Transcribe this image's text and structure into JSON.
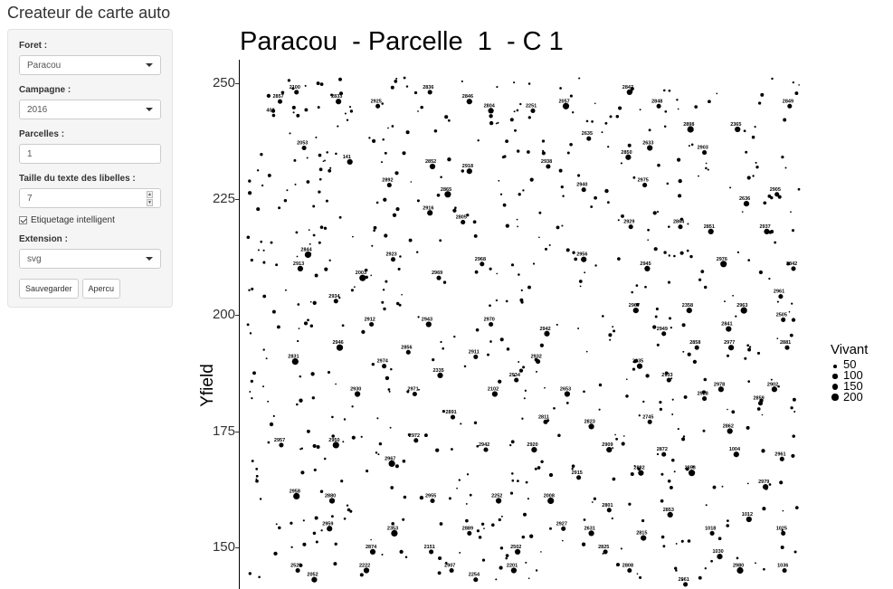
{
  "app": {
    "title": "Createur de carte auto"
  },
  "sidebar": {
    "foret": {
      "label": "Foret :",
      "value": "Paracou"
    },
    "campagne": {
      "label": "Campagne :",
      "value": "2016"
    },
    "parcelles": {
      "label": "Parcelles :",
      "value": "1"
    },
    "taille": {
      "label": "Taille du texte des libelles :",
      "value": "7"
    },
    "etiquetage": {
      "label": "Etiquetage intelligent",
      "checked": true
    },
    "extension": {
      "label": "Extension :",
      "value": "svg"
    },
    "buttons": {
      "save": "Sauvegarder",
      "preview": "Apercu"
    }
  },
  "chart_data": {
    "type": "scatter",
    "title": "Paracou  - Parcelle  1  - C 1",
    "ylabel": "Yfield",
    "yticks": [
      "250",
      "225",
      "200",
      "175",
      "150"
    ],
    "ylim": [
      141,
      255
    ],
    "legend": {
      "title": "Vivant",
      "entries": [
        "50",
        "100",
        "150",
        "200"
      ],
      "placement": "right"
    },
    "points": [
      {
        "x": 6,
        "y": 243,
        "label": "403",
        "size": 50
      },
      {
        "x": 11,
        "y": 246,
        "label": "2857",
        "size": 100
      },
      {
        "x": 24,
        "y": 248,
        "label": "2100",
        "size": 100
      },
      {
        "x": 57,
        "y": 246,
        "label": "2833",
        "size": 150
      },
      {
        "x": 88,
        "y": 245,
        "label": "2925",
        "size": 100
      },
      {
        "x": 129,
        "y": 248,
        "label": "2836",
        "size": 100
      },
      {
        "x": 160,
        "y": 246,
        "label": "2846",
        "size": 150
      },
      {
        "x": 177,
        "y": 244,
        "label": "2804",
        "size": 150
      },
      {
        "x": 210,
        "y": 244,
        "label": "2251",
        "size": 100
      },
      {
        "x": 236,
        "y": 245,
        "label": "2057",
        "size": 200
      },
      {
        "x": 286,
        "y": 248,
        "label": "2847",
        "size": 150
      },
      {
        "x": 309,
        "y": 245,
        "label": "2848",
        "size": 100
      },
      {
        "x": 334,
        "y": 240,
        "label": "2898",
        "size": 200
      },
      {
        "x": 371,
        "y": 240,
        "label": "2365",
        "size": 150
      },
      {
        "x": 412,
        "y": 245,
        "label": "2849",
        "size": 100
      },
      {
        "x": 30,
        "y": 236,
        "label": "2053",
        "size": 100
      },
      {
        "x": 66,
        "y": 233,
        "label": "141",
        "size": 150
      },
      {
        "x": 131,
        "y": 232,
        "label": "2852",
        "size": 150
      },
      {
        "x": 160,
        "y": 231,
        "label": "2918",
        "size": 150
      },
      {
        "x": 222,
        "y": 232,
        "label": "2938",
        "size": 100
      },
      {
        "x": 254,
        "y": 238,
        "label": "2635",
        "size": 100
      },
      {
        "x": 285,
        "y": 234,
        "label": "2850",
        "size": 150
      },
      {
        "x": 302,
        "y": 236,
        "label": "2633",
        "size": 150
      },
      {
        "x": 345,
        "y": 235,
        "label": "2903",
        "size": 100
      },
      {
        "x": 97,
        "y": 228,
        "label": "2892",
        "size": 100
      },
      {
        "x": 143,
        "y": 226,
        "label": "2865",
        "size": 200
      },
      {
        "x": 250,
        "y": 227,
        "label": "2940",
        "size": 100
      },
      {
        "x": 298,
        "y": 228,
        "label": "2975",
        "size": 100
      },
      {
        "x": 378,
        "y": 224,
        "label": "2636",
        "size": 150
      },
      {
        "x": 402,
        "y": 226,
        "label": "2905",
        "size": 100
      },
      {
        "x": 129,
        "y": 222,
        "label": "2916",
        "size": 150
      },
      {
        "x": 155,
        "y": 220,
        "label": "2805",
        "size": 100
      },
      {
        "x": 287,
        "y": 219,
        "label": "2929",
        "size": 100
      },
      {
        "x": 326,
        "y": 219,
        "label": "2864",
        "size": 100
      },
      {
        "x": 350,
        "y": 218,
        "label": "2851",
        "size": 150
      },
      {
        "x": 394,
        "y": 218,
        "label": "2937",
        "size": 150
      },
      {
        "x": 33,
        "y": 213,
        "label": "2844",
        "size": 200
      },
      {
        "x": 100,
        "y": 212,
        "label": "2923",
        "size": 100
      },
      {
        "x": 170,
        "y": 211,
        "label": "2968",
        "size": 100
      },
      {
        "x": 250,
        "y": 212,
        "label": "2956",
        "size": 150
      },
      {
        "x": 300,
        "y": 210,
        "label": "2945",
        "size": 150
      },
      {
        "x": 360,
        "y": 211,
        "label": "2976",
        "size": 200
      },
      {
        "x": 27,
        "y": 210,
        "label": "2913",
        "size": 150
      },
      {
        "x": 76,
        "y": 208,
        "label": "2003",
        "size": 200
      },
      {
        "x": 136,
        "y": 208,
        "label": "2969",
        "size": 100
      },
      {
        "x": 415,
        "y": 210,
        "label": "2842",
        "size": 100
      },
      {
        "x": 55,
        "y": 203,
        "label": "2934",
        "size": 100
      },
      {
        "x": 291,
        "y": 201,
        "label": "2967",
        "size": 150
      },
      {
        "x": 333,
        "y": 201,
        "label": "2358",
        "size": 150
      },
      {
        "x": 376,
        "y": 201,
        "label": "2963",
        "size": 200
      },
      {
        "x": 405,
        "y": 204,
        "label": "2961",
        "size": 100
      },
      {
        "x": 83,
        "y": 198,
        "label": "2912",
        "size": 100
      },
      {
        "x": 128,
        "y": 198,
        "label": "2943",
        "size": 150
      },
      {
        "x": 177,
        "y": 198,
        "label": "2970",
        "size": 100
      },
      {
        "x": 221,
        "y": 196,
        "label": "2942",
        "size": 150
      },
      {
        "x": 313,
        "y": 196,
        "label": "2949",
        "size": 100
      },
      {
        "x": 364,
        "y": 197,
        "label": "2841",
        "size": 150
      },
      {
        "x": 407,
        "y": 199,
        "label": "2505",
        "size": 100
      },
      {
        "x": 58,
        "y": 193,
        "label": "2946",
        "size": 200
      },
      {
        "x": 112,
        "y": 192,
        "label": "2856",
        "size": 100
      },
      {
        "x": 165,
        "y": 191,
        "label": "2911",
        "size": 100
      },
      {
        "x": 214,
        "y": 190,
        "label": "2932",
        "size": 100
      },
      {
        "x": 294,
        "y": 189,
        "label": "2935",
        "size": 150
      },
      {
        "x": 339,
        "y": 193,
        "label": "2858",
        "size": 100
      },
      {
        "x": 366,
        "y": 193,
        "label": "2977",
        "size": 150
      },
      {
        "x": 410,
        "y": 193,
        "label": "2881",
        "size": 100
      },
      {
        "x": 23,
        "y": 190,
        "label": "2831",
        "size": 200
      },
      {
        "x": 93,
        "y": 189,
        "label": "2974",
        "size": 100
      },
      {
        "x": 137,
        "y": 187,
        "label": "2335",
        "size": 150
      },
      {
        "x": 197,
        "y": 186,
        "label": "2934",
        "size": 100
      },
      {
        "x": 317,
        "y": 186,
        "label": "2933",
        "size": 100
      },
      {
        "x": 358,
        "y": 184,
        "label": "2978",
        "size": 150
      },
      {
        "x": 400,
        "y": 184,
        "label": "2902",
        "size": 150
      },
      {
        "x": 72,
        "y": 183,
        "label": "2930",
        "size": 150
      },
      {
        "x": 117,
        "y": 183,
        "label": "2971",
        "size": 100
      },
      {
        "x": 180,
        "y": 183,
        "label": "2102",
        "size": 150
      },
      {
        "x": 237,
        "y": 183,
        "label": "2653",
        "size": 150
      },
      {
        "x": 345,
        "y": 182,
        "label": "2928",
        "size": 100
      },
      {
        "x": 389,
        "y": 181,
        "label": "2859",
        "size": 100
      },
      {
        "x": 147,
        "y": 178,
        "label": "2891",
        "size": 100
      },
      {
        "x": 220,
        "y": 177,
        "label": "2811",
        "size": 100
      },
      {
        "x": 256,
        "y": 176,
        "label": "2823",
        "size": 150
      },
      {
        "x": 302,
        "y": 177,
        "label": "2745",
        "size": 100
      },
      {
        "x": 365,
        "y": 175,
        "label": "2862",
        "size": 150
      },
      {
        "x": 55,
        "y": 172,
        "label": "2950",
        "size": 200
      },
      {
        "x": 118,
        "y": 173,
        "label": "2972",
        "size": 100
      },
      {
        "x": 173,
        "y": 171,
        "label": "2942",
        "size": 100
      },
      {
        "x": 211,
        "y": 171,
        "label": "2920",
        "size": 150
      },
      {
        "x": 270,
        "y": 171,
        "label": "2909",
        "size": 150
      },
      {
        "x": 313,
        "y": 170,
        "label": "2872",
        "size": 100
      },
      {
        "x": 370,
        "y": 170,
        "label": "1004",
        "size": 150
      },
      {
        "x": 406,
        "y": 169,
        "label": "2961",
        "size": 100
      },
      {
        "x": 12,
        "y": 172,
        "label": "2957",
        "size": 100
      },
      {
        "x": 99,
        "y": 168,
        "label": "2967",
        "size": 200
      },
      {
        "x": 246,
        "y": 165,
        "label": "2915",
        "size": 100
      },
      {
        "x": 295,
        "y": 166,
        "label": "2882",
        "size": 150
      },
      {
        "x": 335,
        "y": 166,
        "label": "2853",
        "size": 200
      },
      {
        "x": 393,
        "y": 163,
        "label": "2979",
        "size": 150
      },
      {
        "x": 24,
        "y": 161,
        "label": "2958",
        "size": 200
      },
      {
        "x": 52,
        "y": 160,
        "label": "2880",
        "size": 150
      },
      {
        "x": 131,
        "y": 160,
        "label": "2955",
        "size": 100
      },
      {
        "x": 183,
        "y": 160,
        "label": "2252",
        "size": 150
      },
      {
        "x": 224,
        "y": 160,
        "label": "2008",
        "size": 200
      },
      {
        "x": 270,
        "y": 158,
        "label": "2801",
        "size": 100
      },
      {
        "x": 318,
        "y": 157,
        "label": "2853",
        "size": 150
      },
      {
        "x": 380,
        "y": 156,
        "label": "1012",
        "size": 150
      },
      {
        "x": 50,
        "y": 154,
        "label": "2959",
        "size": 150
      },
      {
        "x": 101,
        "y": 153,
        "label": "2353",
        "size": 200
      },
      {
        "x": 160,
        "y": 153,
        "label": "2889",
        "size": 100
      },
      {
        "x": 234,
        "y": 154,
        "label": "2927",
        "size": 100
      },
      {
        "x": 256,
        "y": 153,
        "label": "2631",
        "size": 150
      },
      {
        "x": 297,
        "y": 152,
        "label": "2815",
        "size": 150
      },
      {
        "x": 351,
        "y": 153,
        "label": "1018",
        "size": 100
      },
      {
        "x": 407,
        "y": 153,
        "label": "1025",
        "size": 100
      },
      {
        "x": 84,
        "y": 149,
        "label": "2874",
        "size": 150
      },
      {
        "x": 130,
        "y": 149,
        "label": "2151",
        "size": 100
      },
      {
        "x": 198,
        "y": 149,
        "label": "2502",
        "size": 150
      },
      {
        "x": 267,
        "y": 149,
        "label": "2825",
        "size": 100
      },
      {
        "x": 357,
        "y": 148,
        "label": "1030",
        "size": 150
      },
      {
        "x": 25,
        "y": 145,
        "label": "2529",
        "size": 100
      },
      {
        "x": 79,
        "y": 145,
        "label": "2222",
        "size": 150
      },
      {
        "x": 146,
        "y": 145,
        "label": "2907",
        "size": 100
      },
      {
        "x": 195,
        "y": 145,
        "label": "2201",
        "size": 150
      },
      {
        "x": 286,
        "y": 145,
        "label": "2808",
        "size": 100
      },
      {
        "x": 373,
        "y": 145,
        "label": "2980",
        "size": 200
      },
      {
        "x": 408,
        "y": 145,
        "label": "1036",
        "size": 100
      },
      {
        "x": 38,
        "y": 143,
        "label": "2052",
        "size": 150
      },
      {
        "x": 165,
        "y": 143,
        "label": "2254",
        "size": 100
      },
      {
        "x": 330,
        "y": 142,
        "label": "2961",
        "size": 100
      }
    ]
  }
}
